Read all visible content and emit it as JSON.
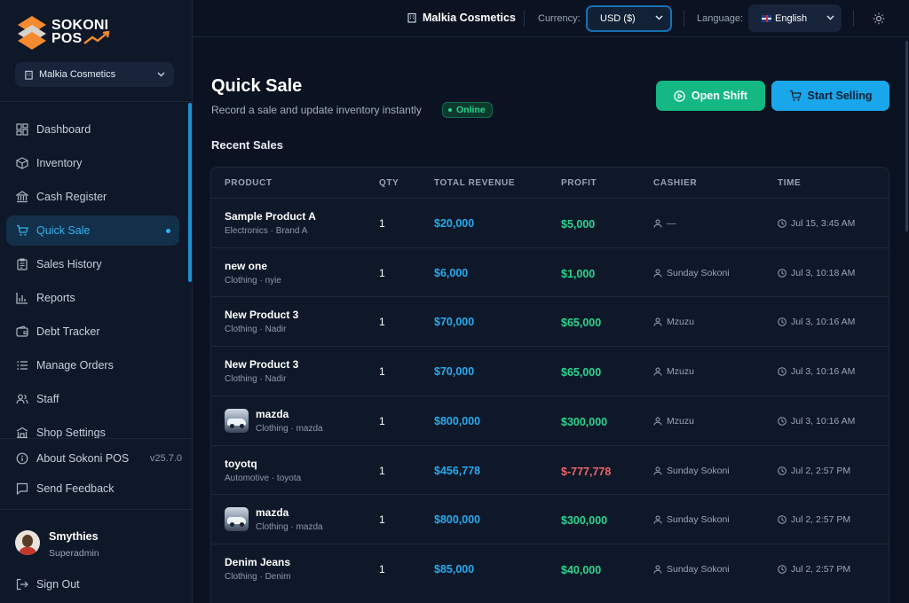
{
  "brand": {
    "name_line1": "SOKONI",
    "name_line2": "POS"
  },
  "sidebar": {
    "store_selector": "Malkia Cosmetics",
    "items": [
      {
        "label": "Dashboard",
        "icon": "dashboard-icon"
      },
      {
        "label": "Inventory",
        "icon": "box-icon"
      },
      {
        "label": "Cash Register",
        "icon": "bank-icon"
      },
      {
        "label": "Quick Sale",
        "icon": "cart-icon",
        "active": true
      },
      {
        "label": "Sales History",
        "icon": "clipboard-icon"
      },
      {
        "label": "Reports",
        "icon": "bar-chart-icon"
      },
      {
        "label": "Debt Tracker",
        "icon": "wallet-icon"
      },
      {
        "label": "Manage Orders",
        "icon": "list-icon"
      },
      {
        "label": "Staff",
        "icon": "users-icon"
      },
      {
        "label": "Shop Settings",
        "icon": "building-icon"
      }
    ],
    "about_label": "About Sokoni POS",
    "version": "v25.7.0",
    "feedback_label": "Send Feedback",
    "user": {
      "name": "Smythies",
      "role": "Superadmin"
    },
    "signout_label": "Sign Out"
  },
  "topbar": {
    "store_name": "Malkia Cosmetics",
    "currency_label": "Currency:",
    "currency_value": "USD ($)",
    "language_label": "Language:",
    "language_value": "English"
  },
  "page": {
    "title": "Quick Sale",
    "subtitle": "Record a sale and update inventory instantly",
    "status_badge": "Online",
    "open_shift_label": "Open Shift",
    "start_selling_label": "Start Selling",
    "section_title": "Recent Sales"
  },
  "table": {
    "columns": [
      "PRODUCT",
      "QTY",
      "TOTAL REVENUE",
      "PROFIT",
      "CASHIER",
      "TIME"
    ],
    "rows": [
      {
        "name": "Sample Product A",
        "meta": "Electronics · Brand A",
        "qty": "1",
        "revenue": "$20,000",
        "profit": "$5,000",
        "cashier": "—",
        "time": "Jul 15, 3:45 AM",
        "thumb": false,
        "negative": false
      },
      {
        "name": "new one",
        "meta": "Clothing · nyie",
        "qty": "1",
        "revenue": "$6,000",
        "profit": "$1,000",
        "cashier": "Sunday Sokoni",
        "time": "Jul 3, 10:18 AM",
        "thumb": false,
        "negative": false
      },
      {
        "name": "New Product 3",
        "meta": "Clothing · Nadir",
        "qty": "1",
        "revenue": "$70,000",
        "profit": "$65,000",
        "cashier": "Mzuzu",
        "time": "Jul 3, 10:16 AM",
        "thumb": false,
        "negative": false
      },
      {
        "name": "New Product 3",
        "meta": "Clothing · Nadir",
        "qty": "1",
        "revenue": "$70,000",
        "profit": "$65,000",
        "cashier": "Mzuzu",
        "time": "Jul 3, 10:16 AM",
        "thumb": false,
        "negative": false
      },
      {
        "name": "mazda",
        "meta": "Clothing · mazda",
        "qty": "1",
        "revenue": "$800,000",
        "profit": "$300,000",
        "cashier": "Mzuzu",
        "time": "Jul 3, 10:16 AM",
        "thumb": true,
        "negative": false
      },
      {
        "name": "toyotq",
        "meta": "Automotive · toyota",
        "qty": "1",
        "revenue": "$456,778",
        "profit": "$-777,778",
        "cashier": "Sunday Sokoni",
        "time": "Jul 2, 2:57 PM",
        "thumb": false,
        "negative": true
      },
      {
        "name": "mazda",
        "meta": "Clothing · mazda",
        "qty": "1",
        "revenue": "$800,000",
        "profit": "$300,000",
        "cashier": "Sunday Sokoni",
        "time": "Jul 2, 2:57 PM",
        "thumb": true,
        "negative": false
      },
      {
        "name": "Denim Jeans",
        "meta": "Clothing · Denim",
        "qty": "1",
        "revenue": "$85,000",
        "profit": "$40,000",
        "cashier": "Sunday Sokoni",
        "time": "Jul 2, 2:57 PM",
        "thumb": false,
        "negative": false
      }
    ]
  },
  "colors": {
    "background": "#0b1322",
    "accent_blue": "#29a9ec",
    "accent_green": "#2bd58f",
    "negative_red": "#f0626a",
    "brand_orange": "#f58a2e"
  }
}
